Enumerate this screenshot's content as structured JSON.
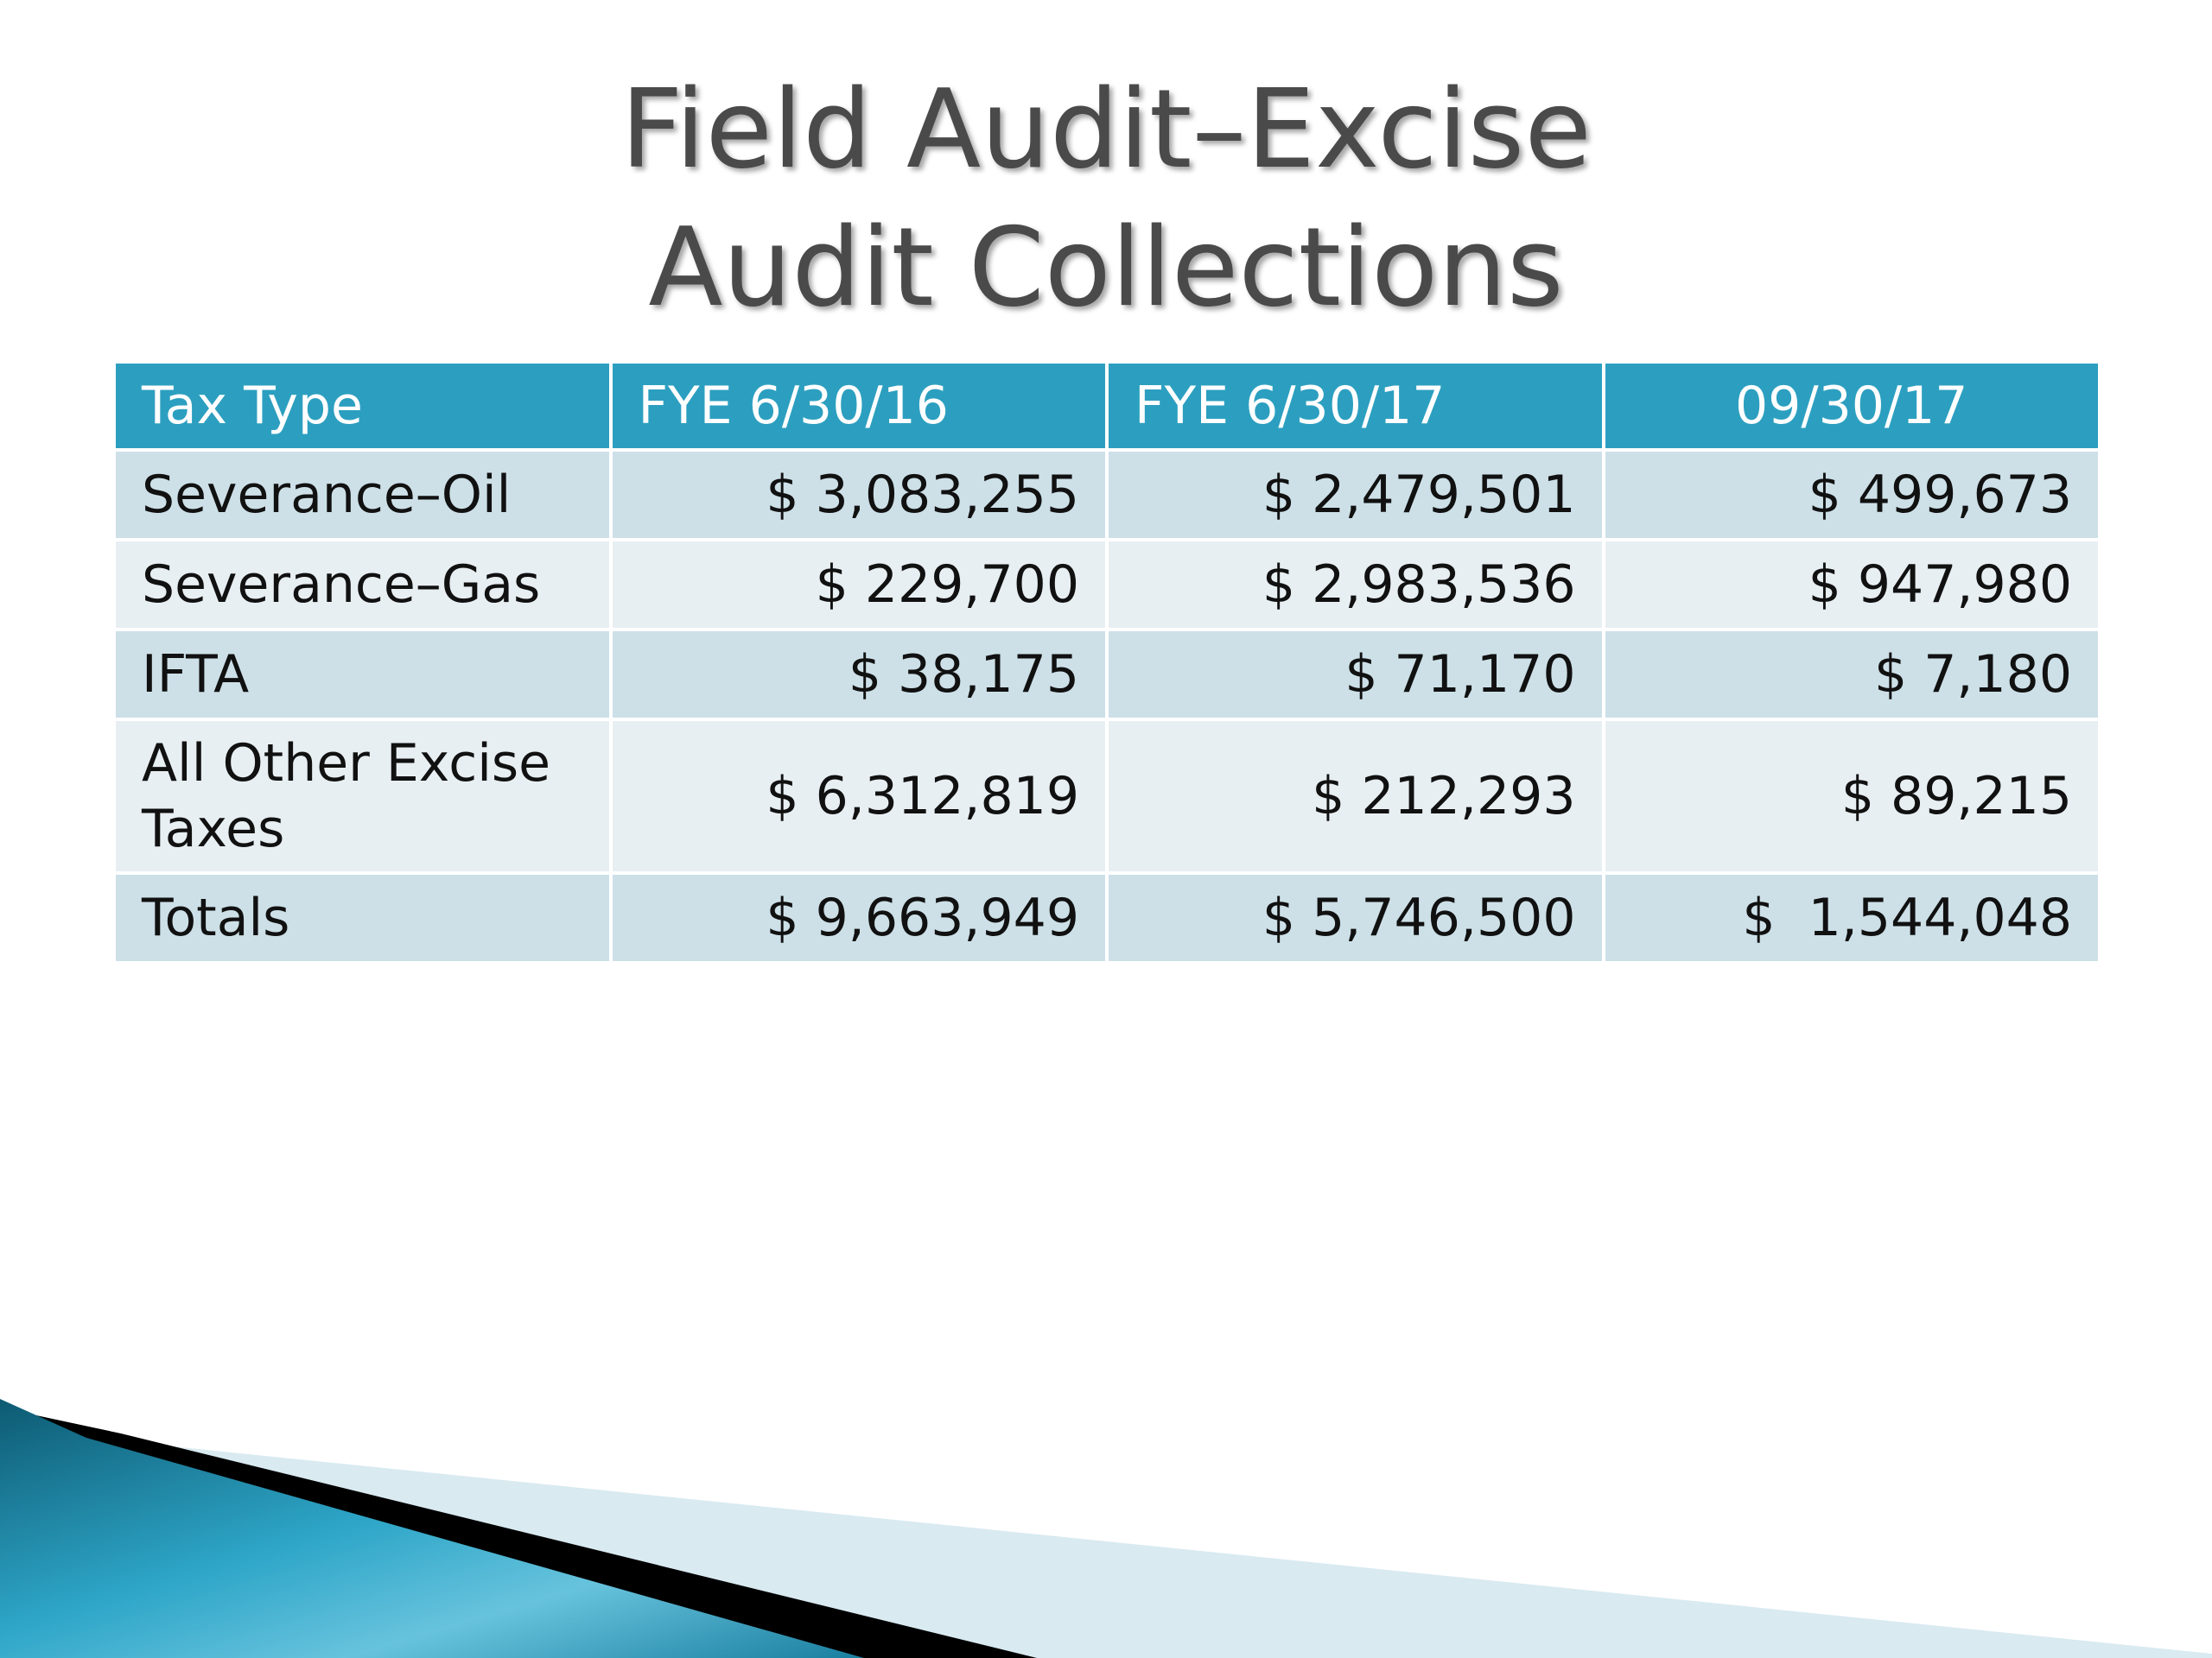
{
  "title": {
    "line1": "Field Audit–Excise",
    "line2": "Audit Collections"
  },
  "table": {
    "headers": [
      "Tax Type",
      "FYE 6/30/16",
      "FYE 6/30/17",
      "09/30/17"
    ],
    "rows": [
      {
        "label": "Severance–Oil",
        "fye16": "$ 3,083,255",
        "fye17": "$ 2,479,501",
        "q": "$ 499,673"
      },
      {
        "label": "Severance–Gas",
        "fye16": "$ 229,700",
        "fye17": "$ 2,983,536",
        "q": "$ 947,980"
      },
      {
        "label": "IFTA",
        "fye16": "$ 38,175",
        "fye17": "$ 71,170",
        "q": "$ 7,180"
      },
      {
        "label": "All Other Excise Taxes",
        "fye16": "$ 6,312,819",
        "fye17": "$ 212,293",
        "q": "$ 89,215"
      },
      {
        "label": "Totals",
        "fye16": "$ 9,663,949",
        "fye17": "$ 5,746,500",
        "q": "$  1,544,048"
      }
    ]
  },
  "colors": {
    "header_bg": "#2c9fc0",
    "row_odd": "#cde0e8",
    "row_even": "#e8eff3",
    "title_text": "#4a4a4a"
  }
}
